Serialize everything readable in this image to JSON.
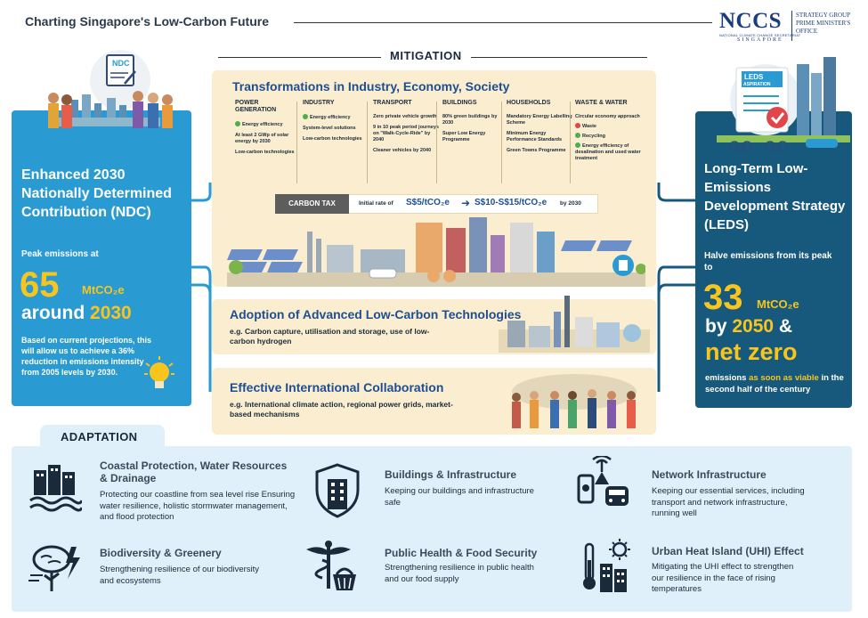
{
  "header": {
    "title": "Charting Singapore's Low-Carbon Future",
    "logo_text": "NCCS",
    "logo_sub": "NATIONAL CLIMATE CHANGE SECRETARIAT",
    "logo_country": "SINGAPORE",
    "logo_right": [
      "STRATEGY GROUP",
      "PRIME MINISTER'S",
      "OFFICE"
    ]
  },
  "mitigation": {
    "label": "MITIGATION",
    "transformations": {
      "title": "Transformations in Industry, Economy, Society",
      "sectors": [
        {
          "heading": "POWER GENERATION",
          "items": [
            {
              "text": "Energy efficiency",
              "marker": "green"
            },
            {
              "text": "At least 2 GWp of solar energy by 2030"
            },
            {
              "text": "Low-carbon technologies"
            }
          ]
        },
        {
          "heading": "INDUSTRY",
          "items": [
            {
              "text": "Energy efficiency",
              "marker": "green"
            },
            {
              "text": "System-level solutions"
            },
            {
              "text": "Low-carbon technologies"
            }
          ]
        },
        {
          "heading": "TRANSPORT",
          "items": [
            {
              "text": "Zero private vehicle growth"
            },
            {
              "text": "9 in 10 peak period journeys on \"Walk-Cycle-Ride\" by 2040"
            },
            {
              "text": "Cleaner vehicles by 2040"
            }
          ]
        },
        {
          "heading": "BUILDINGS",
          "items": [
            {
              "text": "80% green buildings by 2030"
            },
            {
              "text": "Super Low Energy Programme"
            }
          ]
        },
        {
          "heading": "HOUSEHOLDS",
          "items": [
            {
              "text": "Mandatory Energy Labelling Scheme"
            },
            {
              "text": "Minimum Energy Performance Standards"
            },
            {
              "text": "Green Towns Programme"
            }
          ]
        },
        {
          "heading": "WASTE & WATER",
          "items": [
            {
              "text": "Circular economy approach"
            },
            {
              "text": "Waste",
              "marker": "red"
            },
            {
              "text": "Recycling",
              "marker": "green"
            },
            {
              "text": "Energy efficiency of desalination and used water treatment",
              "marker": "green"
            }
          ]
        }
      ],
      "carbon_tax": {
        "label": "CARBON TAX",
        "initial_rate": "Initial rate of",
        "value1": "S$5/tCO₂e",
        "arrow": "➜",
        "value2": "S$10-S$15/tCO₂e",
        "by": "by 2030"
      }
    },
    "adoption": {
      "title": "Adoption of Advanced Low-Carbon Technologies",
      "subtitle": "e.g. Carbon capture, utilisation and storage, use of low-carbon hydrogen"
    },
    "collaboration": {
      "title": "Effective International Collaboration",
      "subtitle": "e.g. International climate action, regional power grids, market-based mechanisms"
    }
  },
  "ndc": {
    "badge": "NDC",
    "title": "Enhanced 2030 Nationally Determined Contribution (NDC)",
    "peak_label": "Peak emissions at",
    "value": "65",
    "unit": "MtCO₂e",
    "around": "around",
    "year": "2030",
    "note": "Based on current projections, this will allow us to achieve a 36% reduction in emissions intensity from 2005 levels by 2030."
  },
  "leds": {
    "badge": "LEDS ASPIRATION",
    "title": "Long-Term Low-Emissions Development Strategy (LEDS)",
    "halve": "Halve emissions from its peak to",
    "value": "33",
    "unit": "MtCO₂e",
    "by": "by",
    "year": "2050",
    "amp": "&",
    "net_zero": "net zero",
    "note_pre": "emissions",
    "note_hl": "as soon as viable",
    "note_post": "in the second half of the century"
  },
  "adaptation": {
    "label": "ADAPTATION",
    "items": [
      {
        "title": "Coastal Protection, Water Resources & Drainage",
        "desc": "Protecting our coastline from sea level rise Ensuring water resilience, holistic stormwater management, and flood protection",
        "icon": "coastal-icon"
      },
      {
        "title": "Buildings & Infrastructure",
        "desc": "Keeping our buildings and infrastructure safe",
        "icon": "building-shield-icon"
      },
      {
        "title": "Network Infrastructure",
        "desc": "Keeping our essential services, including transport and network infrastructure, running well",
        "icon": "network-icon"
      },
      {
        "title": "Biodiversity & Greenery",
        "desc": "Strengthening resilience of our biodiversity and ecosystems",
        "icon": "tree-storm-icon"
      },
      {
        "title": "Public Health & Food Security",
        "desc": "Strengthening resilience in public health and our food supply",
        "icon": "health-food-icon"
      },
      {
        "title": "Urban Heat Island (UHI) Effect",
        "desc": "Mitigating the UHI effect to strengthen our resilience in the face of rising temperatures",
        "icon": "heat-icon"
      }
    ]
  },
  "colors": {
    "ndc_blue": "#2a9ad2",
    "leds_navy": "#16597c",
    "accent_yellow": "#f7c51e",
    "mitigation_cream": "#fbedcf",
    "title_blue": "#1d4f91",
    "adaptation_bg": "#dff0fa"
  }
}
